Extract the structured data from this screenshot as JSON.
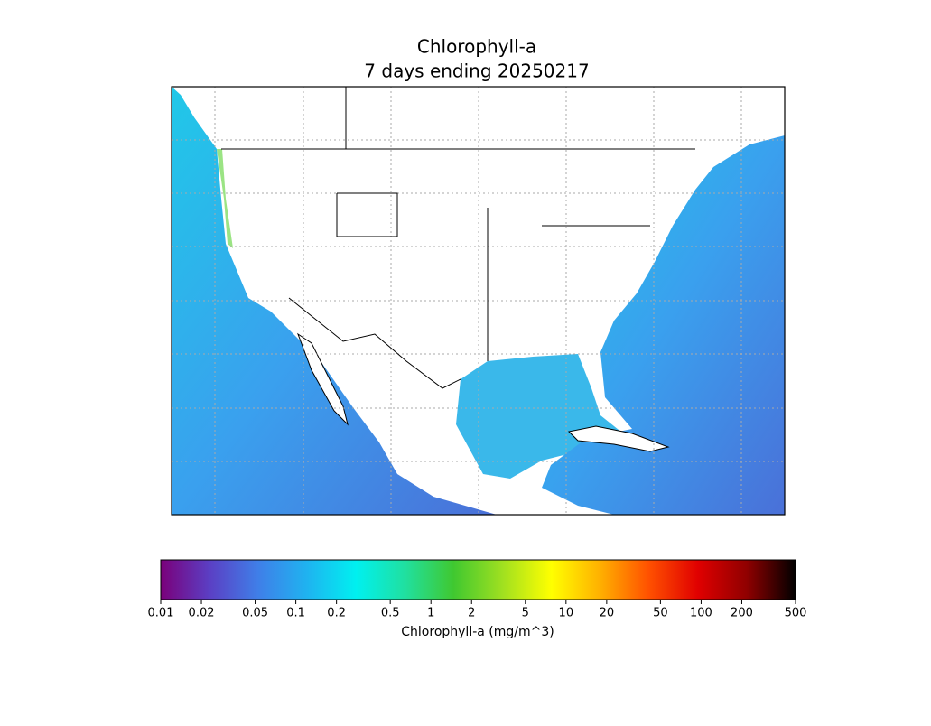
{
  "chart_data": {
    "type": "colorbar-map",
    "title": "Chlorophyll-a",
    "subtitle": "7 days ending 20250217",
    "colorbar_label": "Chlorophyll-a (mg/m^3)",
    "xlim": [
      0.01,
      500
    ],
    "log_scale": true,
    "xticks": [
      0.01,
      0.02,
      0.05,
      0.1,
      0.2,
      0.5,
      1,
      2,
      5,
      10,
      20,
      50,
      100,
      200,
      500
    ],
    "colormap": [
      "#7a007a",
      "#5b3fc4",
      "#3f7fe8",
      "#1fb3f0",
      "#00f0f0",
      "#20e0a0",
      "#40c830",
      "#a0e020",
      "#ffff00",
      "#ffb000",
      "#ff5000",
      "#e00000",
      "#900000",
      "#000000"
    ]
  }
}
